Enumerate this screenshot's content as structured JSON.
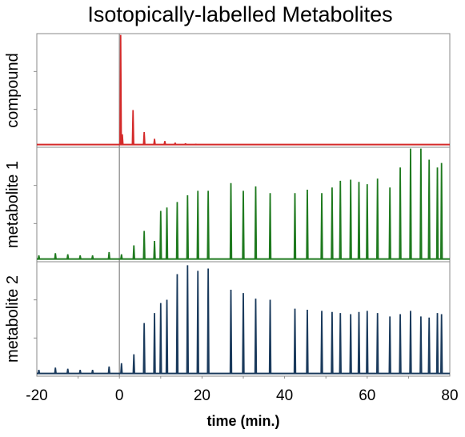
{
  "chart_data": {
    "type": "line",
    "title": "Isotopically-labelled Metabolites",
    "xlabel": "time (min.)",
    "xlim": [
      -20,
      80
    ],
    "x_ticks": [
      "-20",
      "0",
      "20",
      "40",
      "60",
      "80"
    ],
    "grid": false,
    "vertical_reference_line_at_x": 0,
    "shared_x_axis": true,
    "panels": [
      {
        "ylabel": "compound",
        "color": "#d42a2a",
        "ylim": [
          0,
          1
        ],
        "y_ticks_labeled": false,
        "peaks": [
          {
            "x": 0.3,
            "y": 1.0
          },
          {
            "x": 0.7,
            "y": 0.1
          },
          {
            "x": 3.3,
            "y": 0.32
          },
          {
            "x": 6.0,
            "y": 0.12
          },
          {
            "x": 8.5,
            "y": 0.06
          },
          {
            "x": 11.0,
            "y": 0.04
          },
          {
            "x": 13.5,
            "y": 0.025
          },
          {
            "x": 16.0,
            "y": 0.02
          },
          {
            "x": 18.5,
            "y": 0.015
          }
        ]
      },
      {
        "ylabel": "metabolite 1",
        "color": "#1f7a1f",
        "ylim": [
          0,
          1
        ],
        "y_ticks_labeled": false,
        "peaks": [
          {
            "x": -19.5,
            "y": 0.04
          },
          {
            "x": -15.5,
            "y": 0.06
          },
          {
            "x": -12.5,
            "y": 0.05
          },
          {
            "x": -9.5,
            "y": 0.04
          },
          {
            "x": -6.5,
            "y": 0.04
          },
          {
            "x": -2.5,
            "y": 0.07
          },
          {
            "x": 0.5,
            "y": 0.05
          },
          {
            "x": 3.5,
            "y": 0.13
          },
          {
            "x": 6.0,
            "y": 0.26
          },
          {
            "x": 8.5,
            "y": 0.17
          },
          {
            "x": 10.0,
            "y": 0.44
          },
          {
            "x": 11.5,
            "y": 0.47
          },
          {
            "x": 14.0,
            "y": 0.52
          },
          {
            "x": 16.5,
            "y": 0.58
          },
          {
            "x": 19.0,
            "y": 0.62
          },
          {
            "x": 21.5,
            "y": 0.62
          },
          {
            "x": 27.0,
            "y": 0.69
          },
          {
            "x": 30.0,
            "y": 0.62
          },
          {
            "x": 33.0,
            "y": 0.66
          },
          {
            "x": 36.5,
            "y": 0.6
          },
          {
            "x": 42.5,
            "y": 0.6
          },
          {
            "x": 45.5,
            "y": 0.63
          },
          {
            "x": 49.0,
            "y": 0.6
          },
          {
            "x": 51.5,
            "y": 0.65
          },
          {
            "x": 53.5,
            "y": 0.71
          },
          {
            "x": 56.0,
            "y": 0.72
          },
          {
            "x": 58.0,
            "y": 0.7
          },
          {
            "x": 60.0,
            "y": 0.68
          },
          {
            "x": 62.5,
            "y": 0.73
          },
          {
            "x": 65.5,
            "y": 0.65
          },
          {
            "x": 68.0,
            "y": 0.83
          },
          {
            "x": 70.5,
            "y": 1.0
          },
          {
            "x": 73.0,
            "y": 1.0
          },
          {
            "x": 75.0,
            "y": 0.9
          },
          {
            "x": 77.0,
            "y": 0.83
          },
          {
            "x": 78.0,
            "y": 0.87
          }
        ]
      },
      {
        "ylabel": "metabolite 2",
        "color": "#1a3a5c",
        "ylim": [
          0,
          1
        ],
        "y_ticks_labeled": false,
        "peaks": [
          {
            "x": -19.5,
            "y": 0.04
          },
          {
            "x": -15.5,
            "y": 0.06
          },
          {
            "x": -12.5,
            "y": 0.05
          },
          {
            "x": -9.5,
            "y": 0.04
          },
          {
            "x": -6.5,
            "y": 0.04
          },
          {
            "x": -2.5,
            "y": 0.07
          },
          {
            "x": 0.5,
            "y": 0.1
          },
          {
            "x": 3.5,
            "y": 0.18
          },
          {
            "x": 6.0,
            "y": 0.46
          },
          {
            "x": 8.5,
            "y": 0.55
          },
          {
            "x": 10.0,
            "y": 0.64
          },
          {
            "x": 11.5,
            "y": 0.67
          },
          {
            "x": 14.0,
            "y": 0.9
          },
          {
            "x": 16.5,
            "y": 0.98
          },
          {
            "x": 19.0,
            "y": 0.93
          },
          {
            "x": 21.5,
            "y": 0.95
          },
          {
            "x": 27.0,
            "y": 0.76
          },
          {
            "x": 30.0,
            "y": 0.73
          },
          {
            "x": 33.0,
            "y": 0.68
          },
          {
            "x": 36.5,
            "y": 0.67
          },
          {
            "x": 42.5,
            "y": 0.59
          },
          {
            "x": 45.5,
            "y": 0.58
          },
          {
            "x": 49.0,
            "y": 0.57
          },
          {
            "x": 51.5,
            "y": 0.56
          },
          {
            "x": 53.5,
            "y": 0.55
          },
          {
            "x": 56.0,
            "y": 0.54
          },
          {
            "x": 58.0,
            "y": 0.56
          },
          {
            "x": 60.0,
            "y": 0.57
          },
          {
            "x": 62.5,
            "y": 0.55
          },
          {
            "x": 65.5,
            "y": 0.52
          },
          {
            "x": 68.0,
            "y": 0.54
          },
          {
            "x": 70.5,
            "y": 0.57
          },
          {
            "x": 73.0,
            "y": 0.52
          },
          {
            "x": 75.0,
            "y": 0.51
          },
          {
            "x": 77.0,
            "y": 0.55
          },
          {
            "x": 78.0,
            "y": 0.54
          }
        ]
      }
    ]
  }
}
